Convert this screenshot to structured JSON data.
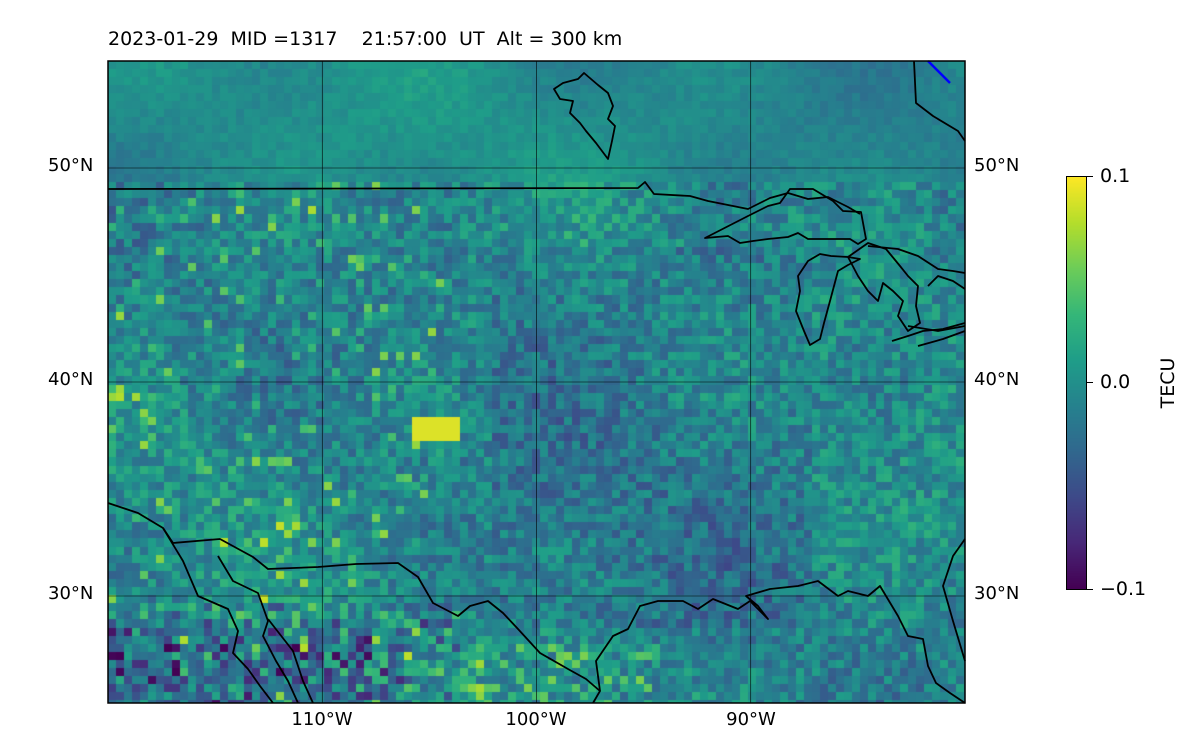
{
  "header": {
    "date": "2023-01-29",
    "mid_label": "MID =1317",
    "time": "21:57:00  UT",
    "altitude": "Alt = 300 km"
  },
  "map": {
    "type": "heatmap",
    "lon_range": [
      -120,
      -80
    ],
    "lat_range": [
      25,
      55
    ],
    "gridlines": true,
    "lat_ticks": [
      {
        "value": 50,
        "label": "50°N"
      },
      {
        "value": 40,
        "label": "40°N"
      },
      {
        "value": 30,
        "label": "30°N"
      }
    ],
    "lon_ticks": [
      {
        "value": -110,
        "label": "110°W"
      },
      {
        "value": -100,
        "label": "100°W"
      },
      {
        "value": -90,
        "label": "90°W"
      }
    ],
    "coastline_color": "#000000",
    "terminator_color": "#0000ff"
  },
  "colorbar": {
    "label": "TECU",
    "min": -0.1,
    "max": 0.1,
    "colormap": "viridis",
    "ticks": [
      {
        "value": 0.1,
        "label": "0.1"
      },
      {
        "value": 0.0,
        "label": "0.0"
      },
      {
        "value": -0.1,
        "label": "−0.1"
      }
    ]
  }
}
